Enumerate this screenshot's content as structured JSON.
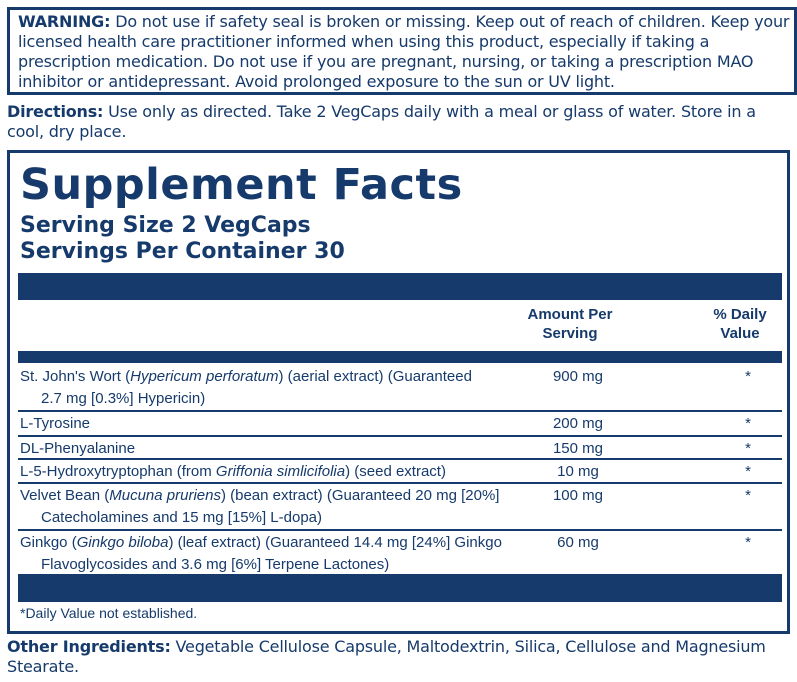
{
  "warning": {
    "label": "WARNING:",
    "text": " Do not use if safety seal is broken or missing. Keep out of reach of children. Keep your licensed health care practitioner informed when using this product, especially if taking a prescription medication. Do not use if you are pregnant, nursing, or taking a prescription MAO inhibitor or antidepressant. Avoid prolonged exposure to the sun or UV light."
  },
  "directions": {
    "label": "Directions:",
    "text": " Use only as directed. Take 2 VegCaps daily with a meal or glass of water. Store in a cool, dry place."
  },
  "facts": {
    "title": "Supplement Facts",
    "serving_size": "Serving Size 2 VegCaps",
    "servings_per_container": "Servings Per Container 30",
    "col_amount": [
      "Amount Per",
      "Serving"
    ],
    "col_daily": [
      "% Daily",
      "Value"
    ],
    "rows": [
      {
        "line1": [
          {
            "t": "St. John's Wort ("
          },
          {
            "t": "Hypericum perforatum",
            "i": true
          },
          {
            "t": ") (aerial extract) (Guaranteed"
          }
        ],
        "line2": [
          {
            "t": "2.7 mg [0.3%] Hypericin)"
          }
        ],
        "amount": "900 mg",
        "dv": "*"
      },
      {
        "line1": [
          {
            "t": "L-Tyrosine"
          }
        ],
        "amount": "200 mg",
        "dv": "*"
      },
      {
        "line1": [
          {
            "t": "DL-Phenyalanine"
          }
        ],
        "amount": "150 mg",
        "dv": "*"
      },
      {
        "line1": [
          {
            "t": "L-5-Hydroxytryptophan (from "
          },
          {
            "t": "Griffonia simlicifolia",
            "i": true
          },
          {
            "t": ") (seed extract)"
          }
        ],
        "amount": "10 mg",
        "dv": "*"
      },
      {
        "line1": [
          {
            "t": "Velvet Bean ("
          },
          {
            "t": "Mucuna pruriens",
            "i": true
          },
          {
            "t": ") (bean extract) (Guaranteed 20 mg [20%]"
          }
        ],
        "line2": [
          {
            "t": "Catecholamines and 15 mg [15%] L-dopa)"
          }
        ],
        "amount": "100 mg",
        "dv": "*"
      },
      {
        "line1": [
          {
            "t": "Ginkgo ("
          },
          {
            "t": "Ginkgo biloba",
            "i": true
          },
          {
            "t": ") (leaf extract) (Guaranteed 14.4 mg [24%] Ginkgo"
          }
        ],
        "line2": [
          {
            "t": "Flavoglycosides and 3.6 mg [6%] Terpene Lactones)"
          }
        ],
        "amount": "60 mg",
        "dv": "*"
      }
    ],
    "footnote": "*Daily Value not established."
  },
  "other": {
    "label": "Other Ingredients:",
    "text": " Vegetable Cellulose Capsule, Maltodextrin, Silica, Cellulose and Magnesium Stearate."
  },
  "colors": {
    "navy": "#163a6b"
  }
}
